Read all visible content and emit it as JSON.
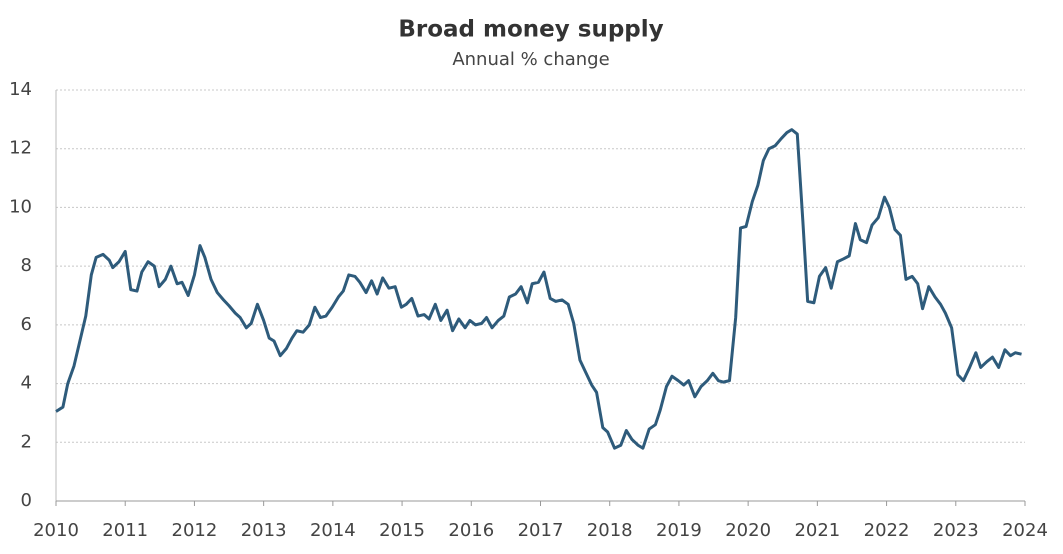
{
  "chart_data": {
    "type": "line",
    "title": "Broad money supply",
    "subtitle": "Annual % change",
    "x": [
      2010.0,
      2010.1,
      2010.17,
      2010.26,
      2010.35,
      2010.43,
      2010.51,
      2010.58,
      2010.68,
      2010.77,
      2010.82,
      2010.91,
      2011.0,
      2011.08,
      2011.17,
      2011.24,
      2011.33,
      2011.42,
      2011.49,
      2011.58,
      2011.66,
      2011.75,
      2011.82,
      2011.91,
      2012.0,
      2012.08,
      2012.15,
      2012.24,
      2012.33,
      2012.42,
      2012.5,
      2012.59,
      2012.66,
      2012.75,
      2012.82,
      2012.91,
      2013.0,
      2013.08,
      2013.15,
      2013.24,
      2013.33,
      2013.41,
      2013.48,
      2013.57,
      2013.66,
      2013.74,
      2013.82,
      2013.9,
      2013.99,
      2014.08,
      2014.15,
      2014.23,
      2014.32,
      2014.39,
      2014.48,
      2014.56,
      2014.64,
      2014.72,
      2014.81,
      2014.9,
      2014.99,
      2015.06,
      2015.14,
      2015.23,
      2015.32,
      2015.39,
      2015.48,
      2015.56,
      2015.65,
      2015.73,
      2015.82,
      2015.91,
      2015.98,
      2016.06,
      2016.15,
      2016.22,
      2016.3,
      2016.39,
      2016.47,
      2016.55,
      2016.64,
      2016.72,
      2016.81,
      2016.88,
      2016.97,
      2017.05,
      2017.14,
      2017.22,
      2017.31,
      2017.4,
      2017.48,
      2017.57,
      2017.65,
      2017.74,
      2017.81,
      2017.9,
      2017.97,
      2018.07,
      2018.16,
      2018.24,
      2018.32,
      2018.41,
      2018.48,
      2018.57,
      2018.66,
      2018.73,
      2018.82,
      2018.9,
      2018.99,
      2019.07,
      2019.14,
      2019.23,
      2019.32,
      2019.41,
      2019.49,
      2019.57,
      2019.64,
      2019.73,
      2019.82,
      2019.89,
      2019.97,
      2020.06,
      2020.14,
      2020.22,
      2020.3,
      2020.39,
      2020.48,
      2020.56,
      2020.63,
      2020.71,
      2020.79,
      2020.86,
      2020.95,
      2021.03,
      2021.12,
      2021.2,
      2021.29,
      2021.38,
      2021.46,
      2021.55,
      2021.62,
      2021.71,
      2021.79,
      2021.88,
      2021.97,
      2022.04,
      2022.12,
      2022.2,
      2022.28,
      2022.37,
      2022.45,
      2022.52,
      2022.61,
      2022.7,
      2022.78,
      2022.85,
      2022.94,
      2023.03,
      2023.11,
      2023.2,
      2023.29,
      2023.36,
      2023.45,
      2023.53,
      2023.62,
      2023.71,
      2023.79,
      2023.86,
      2023.95
    ],
    "series": [
      {
        "color": "#2e5b7b",
        "values": [
          3.05,
          3.2,
          4.0,
          4.6,
          5.5,
          6.3,
          7.7,
          8.3,
          8.4,
          8.2,
          7.95,
          8.15,
          8.5,
          7.2,
          7.15,
          7.8,
          8.15,
          8.0,
          7.3,
          7.55,
          8.0,
          7.4,
          7.45,
          7.0,
          7.7,
          8.7,
          8.3,
          7.55,
          7.1,
          6.85,
          6.65,
          6.4,
          6.25,
          5.9,
          6.05,
          6.7,
          6.15,
          5.55,
          5.45,
          4.95,
          5.2,
          5.55,
          5.8,
          5.75,
          6.0,
          6.6,
          6.25,
          6.3,
          6.6,
          6.95,
          7.15,
          7.7,
          7.65,
          7.45,
          7.1,
          7.5,
          7.05,
          7.6,
          7.25,
          7.3,
          6.6,
          6.7,
          6.9,
          6.3,
          6.35,
          6.2,
          6.7,
          6.15,
          6.5,
          5.8,
          6.2,
          5.9,
          6.15,
          6.0,
          6.05,
          6.25,
          5.9,
          6.15,
          6.3,
          6.95,
          7.05,
          7.3,
          6.75,
          7.4,
          7.45,
          7.8,
          6.9,
          6.8,
          6.85,
          6.7,
          6.05,
          4.8,
          4.4,
          3.95,
          3.7,
          2.5,
          2.35,
          1.8,
          1.9,
          2.4,
          2.1,
          1.9,
          1.8,
          2.45,
          2.6,
          3.1,
          3.9,
          4.25,
          4.1,
          3.95,
          4.1,
          3.55,
          3.9,
          4.1,
          4.35,
          4.1,
          4.05,
          4.1,
          6.25,
          9.3,
          9.35,
          10.2,
          10.75,
          11.6,
          12.0,
          12.1,
          12.35,
          12.55,
          12.65,
          12.5,
          9.55,
          6.8,
          6.75,
          7.65,
          7.95,
          7.25,
          8.15,
          8.25,
          8.35,
          9.45,
          8.9,
          8.8,
          9.4,
          9.65,
          10.35,
          10.0,
          9.25,
          9.05,
          7.55,
          7.65,
          7.4,
          6.55,
          7.3,
          6.95,
          6.7,
          6.4,
          5.9,
          4.3,
          4.1,
          4.55,
          5.05,
          4.55,
          4.75,
          4.9,
          4.55,
          5.15,
          4.95,
          5.05,
          5.0
        ]
      }
    ],
    "xlim": [
      2010,
      2024
    ],
    "xticks": [
      2010,
      2011,
      2012,
      2013,
      2014,
      2015,
      2016,
      2017,
      2018,
      2019,
      2020,
      2021,
      2022,
      2023,
      2024
    ],
    "ylim": [
      0,
      14
    ],
    "yticks": [
      0,
      2,
      4,
      6,
      8,
      10,
      12,
      14
    ],
    "grid": true
  }
}
